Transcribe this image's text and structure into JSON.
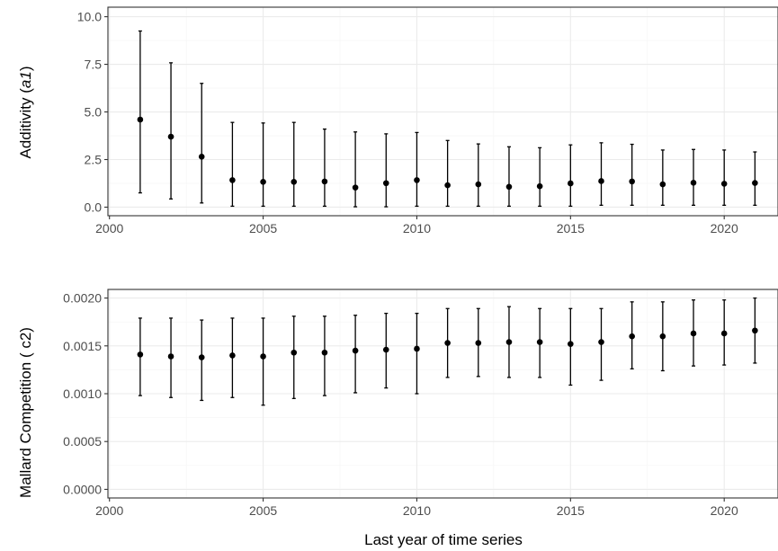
{
  "chart_data": [
    {
      "type": "scatter",
      "ylabel_prefix": "Additivity (",
      "ylabel_symbol": "a1",
      "ylabel_suffix": ")",
      "xlim": [
        1999.95,
        2021.75
      ],
      "ylim": [
        -0.45,
        10.5
      ],
      "xticks": [
        2000,
        2005,
        2010,
        2015,
        2020
      ],
      "yticks": [
        0,
        2.5,
        5,
        7.5,
        10
      ],
      "ytick_labels": [
        "0.0",
        "2.5",
        "5.0",
        "7.5",
        "10.0"
      ],
      "grid": true,
      "x": [
        2001,
        2002,
        2003,
        2004,
        2005,
        2006,
        2007,
        2008,
        2009,
        2010,
        2011,
        2012,
        2013,
        2014,
        2015,
        2016,
        2017,
        2018,
        2019,
        2020,
        2021
      ],
      "y": [
        4.6,
        3.7,
        2.65,
        1.42,
        1.33,
        1.33,
        1.35,
        1.03,
        1.26,
        1.42,
        1.15,
        1.2,
        1.07,
        1.1,
        1.25,
        1.37,
        1.35,
        1.2,
        1.28,
        1.23,
        1.27
      ],
      "ymin": [
        0.75,
        0.43,
        0.22,
        0.05,
        0.05,
        0.05,
        0.05,
        0.02,
        0.02,
        0.05,
        0.05,
        0.05,
        0.05,
        0.05,
        0.05,
        0.1,
        0.1,
        0.1,
        0.1,
        0.1,
        0.1
      ],
      "ymax": [
        9.25,
        7.58,
        6.5,
        4.45,
        4.42,
        4.45,
        4.1,
        3.95,
        3.85,
        3.92,
        3.5,
        3.32,
        3.17,
        3.12,
        3.27,
        3.38,
        3.3,
        3.0,
        3.03,
        3.0,
        2.9
      ]
    },
    {
      "type": "scatter",
      "ylabel": "Mallard Competition ( c2)",
      "xlim": [
        1999.95,
        2021.75
      ],
      "ylim": [
        -9e-05,
        0.00209
      ],
      "xticks": [
        2000,
        2005,
        2010,
        2015,
        2020
      ],
      "yticks": [
        0,
        0.0005,
        0.001,
        0.0015,
        0.002
      ],
      "ytick_labels": [
        "0.0000",
        "0.0005",
        "0.0010",
        "0.0015",
        "0.0020"
      ],
      "grid": true,
      "x": [
        2001,
        2002,
        2003,
        2004,
        2005,
        2006,
        2007,
        2008,
        2009,
        2010,
        2011,
        2012,
        2013,
        2014,
        2015,
        2016,
        2017,
        2018,
        2019,
        2020,
        2021
      ],
      "y": [
        0.00141,
        0.00139,
        0.00138,
        0.0014,
        0.00139,
        0.00143,
        0.00143,
        0.00145,
        0.00146,
        0.00147,
        0.00153,
        0.00153,
        0.00154,
        0.00154,
        0.00152,
        0.00154,
        0.0016,
        0.0016,
        0.00163,
        0.00163,
        0.00166
      ],
      "ymin": [
        0.00098,
        0.00096,
        0.00093,
        0.00096,
        0.00088,
        0.00095,
        0.00098,
        0.00101,
        0.00106,
        0.001,
        0.00117,
        0.00118,
        0.00117,
        0.00117,
        0.00109,
        0.00114,
        0.00126,
        0.00124,
        0.00129,
        0.0013,
        0.00132
      ],
      "ymax": [
        0.00179,
        0.00179,
        0.00177,
        0.00179,
        0.00179,
        0.00181,
        0.00181,
        0.00182,
        0.00184,
        0.00184,
        0.00189,
        0.00189,
        0.00191,
        0.00189,
        0.00189,
        0.00189,
        0.00196,
        0.00196,
        0.00198,
        0.00198,
        0.002
      ]
    }
  ],
  "xlabel": "Last year of time series",
  "colors": {
    "points": "#000000",
    "grid": "#ebebeb",
    "frame": "#333333",
    "tick_text": "#4d4d4d"
  }
}
